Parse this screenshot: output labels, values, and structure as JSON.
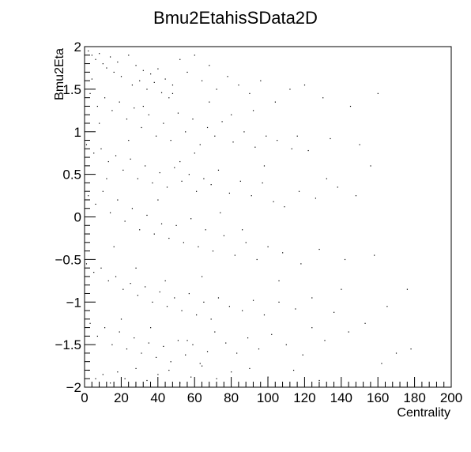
{
  "chart_data": {
    "type": "scatter",
    "title": "Bmu2EtahisSData2D",
    "xlabel": "Centrality",
    "ylabel": "Bmu2Eta",
    "xlim": [
      0,
      200
    ],
    "ylim": [
      -2,
      2
    ],
    "x_ticks": [
      0,
      20,
      40,
      60,
      80,
      100,
      120,
      140,
      160,
      180,
      200
    ],
    "y_ticks": [
      -2,
      -1.5,
      -1,
      -0.5,
      0,
      0.5,
      1,
      1.5,
      2
    ],
    "x_tick_labels": [
      "0",
      "20",
      "40",
      "60",
      "80",
      "100",
      "120",
      "140",
      "160",
      "180",
      "200"
    ],
    "y_tick_labels": [
      "−2",
      "−1.5",
      "−1",
      "−0.5",
      "0",
      "0.5",
      "1",
      "1.5",
      "2"
    ],
    "grid": false,
    "legend": "none",
    "marker_color": "#000000",
    "points": [
      [
        2,
        1.95
      ],
      [
        4,
        1.9
      ],
      [
        6,
        1.85
      ],
      [
        8,
        1.92
      ],
      [
        10,
        1.8
      ],
      [
        12,
        1.75
      ],
      [
        14,
        1.88
      ],
      [
        16,
        1.7
      ],
      [
        18,
        1.82
      ],
      [
        20,
        1.65
      ],
      [
        24,
        1.9
      ],
      [
        26,
        1.55
      ],
      [
        28,
        1.78
      ],
      [
        30,
        1.6
      ],
      [
        32,
        1.72
      ],
      [
        34,
        1.5
      ],
      [
        36,
        1.68
      ],
      [
        38,
        1.58
      ],
      [
        40,
        1.74
      ],
      [
        42,
        1.46
      ],
      [
        44,
        1.62
      ],
      [
        46,
        1.4
      ],
      [
        48,
        1.55
      ],
      [
        52,
        1.85
      ],
      [
        56,
        1.7
      ],
      [
        60,
        1.9
      ],
      [
        64,
        1.6
      ],
      [
        68,
        1.78
      ],
      [
        72,
        1.5
      ],
      [
        78,
        1.65
      ],
      [
        84,
        1.55
      ],
      [
        90,
        1.45
      ],
      [
        96,
        1.6
      ],
      [
        104,
        1.35
      ],
      [
        112,
        1.5
      ],
      [
        120,
        1.55
      ],
      [
        130,
        1.4
      ],
      [
        145,
        1.3
      ],
      [
        160,
        1.45
      ],
      [
        3,
        1.45
      ],
      [
        7,
        1.3
      ],
      [
        11,
        1.4
      ],
      [
        15,
        1.25
      ],
      [
        19,
        1.35
      ],
      [
        23,
        1.15
      ],
      [
        27,
        1.28
      ],
      [
        31,
        1.05
      ],
      [
        35,
        1.2
      ],
      [
        39,
        0.95
      ],
      [
        43,
        1.1
      ],
      [
        47,
        0.9
      ],
      [
        51,
        1.22
      ],
      [
        55,
        1.0
      ],
      [
        59,
        1.15
      ],
      [
        63,
        0.85
      ],
      [
        67,
        1.05
      ],
      [
        71,
        0.95
      ],
      [
        75,
        1.12
      ],
      [
        81,
        0.88
      ],
      [
        87,
        1.0
      ],
      [
        93,
        0.82
      ],
      [
        99,
        0.95
      ],
      [
        105,
        0.9
      ],
      [
        113,
        0.8
      ],
      [
        122,
        0.78
      ],
      [
        134,
        0.92
      ],
      [
        150,
        0.85
      ],
      [
        1,
        0.85
      ],
      [
        5,
        0.75
      ],
      [
        9,
        0.8
      ],
      [
        13,
        0.65
      ],
      [
        17,
        0.72
      ],
      [
        21,
        0.55
      ],
      [
        25,
        0.68
      ],
      [
        29,
        0.45
      ],
      [
        33,
        0.6
      ],
      [
        37,
        0.4
      ],
      [
        41,
        0.52
      ],
      [
        45,
        0.35
      ],
      [
        49,
        0.58
      ],
      [
        53,
        0.42
      ],
      [
        57,
        0.5
      ],
      [
        61,
        0.3
      ],
      [
        65,
        0.45
      ],
      [
        69,
        0.38
      ],
      [
        73,
        0.55
      ],
      [
        79,
        0.28
      ],
      [
        85,
        0.42
      ],
      [
        91,
        0.25
      ],
      [
        97,
        0.4
      ],
      [
        103,
        0.18
      ],
      [
        109,
        0.12
      ],
      [
        117,
        0.3
      ],
      [
        126,
        0.22
      ],
      [
        138,
        0.35
      ],
      [
        2,
        0.25
      ],
      [
        6,
        0.15
      ],
      [
        10,
        0.3
      ],
      [
        14,
        0.05
      ],
      [
        18,
        0.2
      ],
      [
        22,
        -0.05
      ],
      [
        26,
        0.1
      ],
      [
        30,
        -0.15
      ],
      [
        34,
        0.02
      ],
      [
        38,
        -0.2
      ],
      [
        42,
        -0.08
      ],
      [
        46,
        -0.25
      ],
      [
        50,
        -0.1
      ],
      [
        54,
        -0.3
      ],
      [
        58,
        -0.02
      ],
      [
        62,
        -0.35
      ],
      [
        66,
        -0.15
      ],
      [
        70,
        -0.4
      ],
      [
        76,
        -0.22
      ],
      [
        82,
        -0.45
      ],
      [
        88,
        -0.3
      ],
      [
        94,
        -0.5
      ],
      [
        100,
        -0.35
      ],
      [
        108,
        -0.42
      ],
      [
        118,
        -0.55
      ],
      [
        128,
        -0.38
      ],
      [
        142,
        -0.5
      ],
      [
        158,
        -0.45
      ],
      [
        1,
        -0.55
      ],
      [
        5,
        -0.65
      ],
      [
        9,
        -0.6
      ],
      [
        13,
        -0.75
      ],
      [
        17,
        -0.7
      ],
      [
        21,
        -0.85
      ],
      [
        25,
        -0.78
      ],
      [
        29,
        -0.92
      ],
      [
        33,
        -0.82
      ],
      [
        37,
        -1.0
      ],
      [
        41,
        -0.88
      ],
      [
        45,
        -1.05
      ],
      [
        49,
        -0.95
      ],
      [
        53,
        -1.1
      ],
      [
        57,
        -0.9
      ],
      [
        61,
        -1.15
      ],
      [
        65,
        -1.0
      ],
      [
        69,
        -1.2
      ],
      [
        73,
        -0.95
      ],
      [
        79,
        -1.05
      ],
      [
        86,
        -1.1
      ],
      [
        92,
        -0.98
      ],
      [
        98,
        -1.15
      ],
      [
        106,
        -1.0
      ],
      [
        115,
        -1.08
      ],
      [
        124,
        -0.95
      ],
      [
        136,
        -1.12
      ],
      [
        165,
        -1.05
      ],
      [
        176,
        -0.85
      ],
      [
        3,
        -1.25
      ],
      [
        7,
        -1.4
      ],
      [
        11,
        -1.3
      ],
      [
        15,
        -1.5
      ],
      [
        19,
        -1.35
      ],
      [
        23,
        -1.55
      ],
      [
        27,
        -1.42
      ],
      [
        31,
        -1.6
      ],
      [
        35,
        -1.48
      ],
      [
        39,
        -1.65
      ],
      [
        43,
        -1.52
      ],
      [
        47,
        -1.7
      ],
      [
        51,
        -1.45
      ],
      [
        55,
        -1.62
      ],
      [
        59,
        -1.5
      ],
      [
        63,
        -1.72
      ],
      [
        67,
        -1.58
      ],
      [
        71,
        -1.35
      ],
      [
        77,
        -1.48
      ],
      [
        83,
        -1.6
      ],
      [
        89,
        -1.42
      ],
      [
        95,
        -1.55
      ],
      [
        102,
        -1.38
      ],
      [
        110,
        -1.5
      ],
      [
        119,
        -1.62
      ],
      [
        131,
        -1.45
      ],
      [
        144,
        -1.35
      ],
      [
        153,
        -1.25
      ],
      [
        178,
        -1.55
      ],
      [
        2,
        -1.8
      ],
      [
        6,
        -1.9
      ],
      [
        10,
        -1.85
      ],
      [
        14,
        -1.95
      ],
      [
        18,
        -1.82
      ],
      [
        22,
        -1.9
      ],
      [
        28,
        -1.78
      ],
      [
        34,
        -1.92
      ],
      [
        40,
        -1.85
      ],
      [
        46,
        -1.8
      ],
      [
        52,
        -1.95
      ],
      [
        58,
        -1.88
      ],
      [
        64,
        -1.75
      ],
      [
        72,
        -1.9
      ],
      [
        80,
        -1.82
      ],
      [
        90,
        -1.78
      ],
      [
        100,
        -1.88
      ],
      [
        114,
        -1.8
      ],
      [
        128,
        -1.92
      ],
      [
        162,
        -1.72
      ],
      [
        4,
        1.62
      ],
      [
        8,
        1.1
      ],
      [
        12,
        0.45
      ],
      [
        16,
        -0.35
      ],
      [
        20,
        -1.2
      ],
      [
        24,
        0.9
      ],
      [
        28,
        -0.6
      ],
      [
        32,
        1.3
      ],
      [
        36,
        -1.3
      ],
      [
        40,
        0.2
      ],
      [
        44,
        -0.75
      ],
      [
        48,
        1.45
      ],
      [
        52,
        0.65
      ],
      [
        56,
        -1.45
      ],
      [
        60,
        0.75
      ],
      [
        64,
        -0.7
      ],
      [
        68,
        1.35
      ],
      [
        74,
        0.05
      ],
      [
        80,
        1.2
      ],
      [
        86,
        -0.15
      ],
      [
        92,
        1.25
      ],
      [
        98,
        0.6
      ],
      [
        106,
        -0.75
      ],
      [
        116,
        0.95
      ],
      [
        124,
        -1.3
      ],
      [
        132,
        0.45
      ],
      [
        140,
        -0.85
      ],
      [
        148,
        0.25
      ],
      [
        156,
        0.6
      ],
      [
        170,
        -1.6
      ]
    ]
  }
}
